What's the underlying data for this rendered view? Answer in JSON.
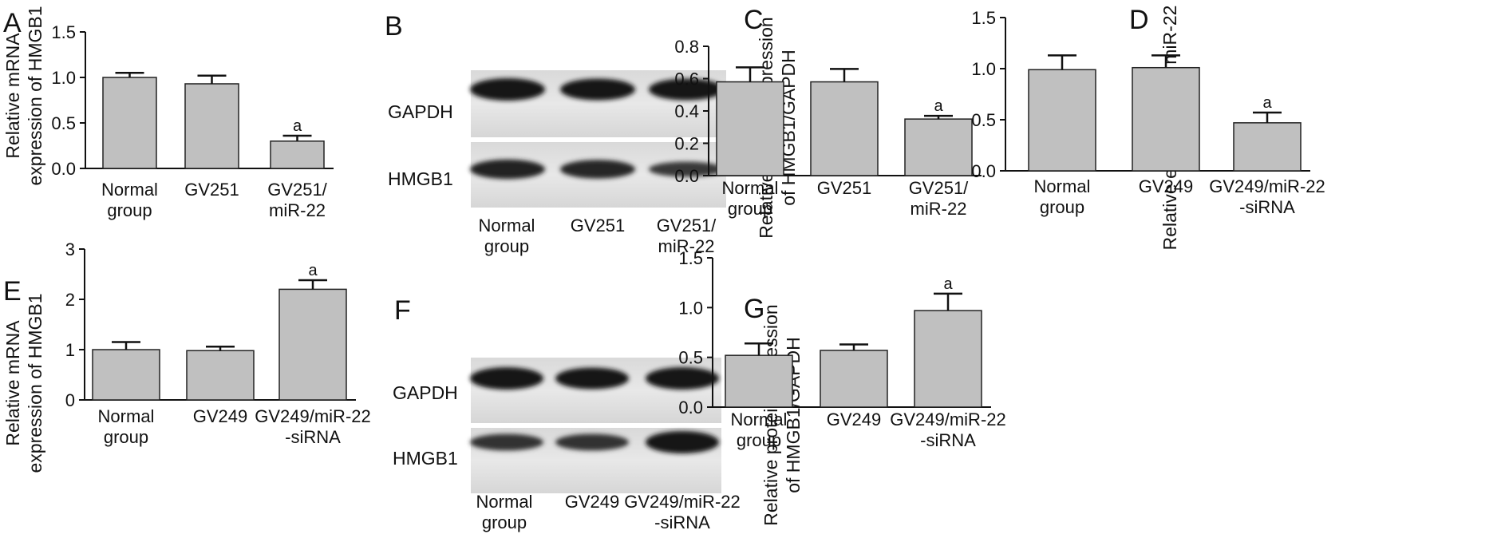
{
  "chart_data": [
    {
      "panel": "A",
      "type": "bar",
      "categories": [
        [
          "Normal",
          "group"
        ],
        [
          "GV251"
        ],
        [
          "GV251/",
          "miR-22"
        ]
      ],
      "values": [
        1.0,
        0.93,
        0.3
      ],
      "errors": [
        0.05,
        0.09,
        0.06
      ],
      "significance": [
        "",
        "",
        "a"
      ],
      "ylabel": [
        "Relative mRNA",
        "expression of HMGB1"
      ],
      "ylim": [
        0,
        1.5
      ],
      "yticks": [
        "0.0",
        "0.5",
        "1.0",
        "1.5"
      ],
      "bar_color": "#c0c0c0"
    },
    {
      "panel": "C",
      "type": "bar",
      "categories": [
        [
          "Normal",
          "group"
        ],
        [
          "GV251"
        ],
        [
          "GV251/",
          "miR-22"
        ]
      ],
      "values": [
        0.58,
        0.58,
        0.35
      ],
      "errors": [
        0.09,
        0.08,
        0.02
      ],
      "significance": [
        "",
        "",
        "a"
      ],
      "ylabel": [
        "Relative protein expression",
        "of HMGB1/GAPDH"
      ],
      "ylim": [
        0,
        0.8
      ],
      "yticks": [
        "0.0",
        "0.2",
        "0.4",
        "0.6",
        "0.8"
      ],
      "bar_color": "#c0c0c0"
    },
    {
      "panel": "D",
      "type": "bar",
      "categories": [
        [
          "Normal",
          "group"
        ],
        [
          "GV249"
        ],
        [
          "GV249/miR-22",
          "-siRNA"
        ]
      ],
      "values": [
        0.99,
        1.01,
        0.47
      ],
      "errors": [
        0.14,
        0.12,
        0.1
      ],
      "significance": [
        "",
        "",
        "a"
      ],
      "ylabel": [
        "Relative expression of miR-22"
      ],
      "ylim": [
        0,
        1.5
      ],
      "yticks": [
        "0.0",
        "0.5",
        "1.0",
        "1.5"
      ],
      "bar_color": "#c0c0c0"
    },
    {
      "panel": "E",
      "type": "bar",
      "categories": [
        [
          "Normal",
          "group"
        ],
        [
          "GV249"
        ],
        [
          "GV249/miR-22",
          "-siRNA"
        ]
      ],
      "values": [
        1.0,
        0.98,
        2.2
      ],
      "errors": [
        0.15,
        0.08,
        0.18
      ],
      "significance": [
        "",
        "",
        "a"
      ],
      "ylabel": [
        "Relative mRNA",
        "expression of HMGB1"
      ],
      "ylim": [
        0,
        3
      ],
      "yticks": [
        "0",
        "1",
        "2",
        "3"
      ],
      "bar_color": "#c0c0c0"
    },
    {
      "panel": "G",
      "type": "bar",
      "categories": [
        [
          "Normal",
          "group"
        ],
        [
          "GV249"
        ],
        [
          "GV249/miR-22",
          "-siRNA"
        ]
      ],
      "values": [
        0.52,
        0.57,
        0.97
      ],
      "errors": [
        0.12,
        0.06,
        0.17
      ],
      "significance": [
        "",
        "",
        "a"
      ],
      "ylabel": [
        "Relative protein expression",
        "of HMGB1/GAPDH"
      ],
      "ylim": [
        0,
        1.5
      ],
      "yticks": [
        "0.0",
        "0.5",
        "1.0",
        "1.5"
      ],
      "bar_color": "#c0c0c0"
    }
  ],
  "blots": [
    {
      "panel": "B",
      "rows": [
        {
          "label": "GAPDH",
          "intensity": [
            1.0,
            0.95,
            0.95
          ]
        },
        {
          "label": "HMGB1",
          "intensity": [
            0.8,
            0.75,
            0.5
          ]
        }
      ],
      "lanes": [
        [
          "Normal",
          "group"
        ],
        [
          "GV251"
        ],
        [
          "GV251/",
          "miR-22"
        ]
      ]
    },
    {
      "panel": "F",
      "rows": [
        {
          "label": "GAPDH",
          "intensity": [
            1.0,
            0.95,
            1.0
          ]
        },
        {
          "label": "HMGB1",
          "intensity": [
            0.6,
            0.6,
            1.0
          ]
        }
      ],
      "lanes": [
        [
          "Normal",
          "group"
        ],
        [
          "GV249"
        ],
        [
          "GV249/miR-22",
          "-siRNA"
        ]
      ]
    }
  ]
}
